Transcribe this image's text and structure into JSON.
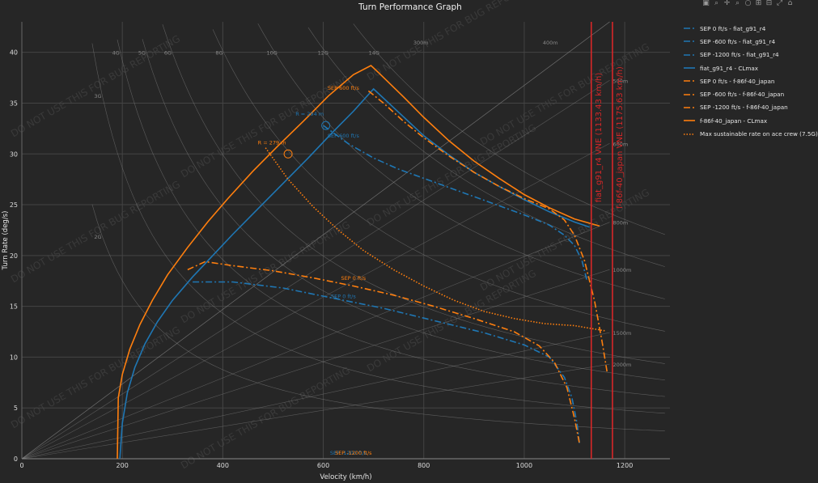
{
  "title": "Turn Performance Graph",
  "toolbar": {
    "icons": [
      "camera-icon",
      "zoom-in-icon",
      "pan-icon",
      "zoom-box-icon",
      "lasso-icon",
      "zoom-plus-icon",
      "zoom-minus-icon",
      "autoscale-icon",
      "reset-axes-icon"
    ],
    "glyphs": [
      "▣",
      "⌕",
      "✛",
      "⌕",
      "○",
      "⊞",
      "⊟",
      "⤢",
      "⌂"
    ]
  },
  "chart_data": {
    "type": "line",
    "title": "Turn Performance Graph",
    "xlabel": "Velocity (km/h)",
    "ylabel": "Turn Rate (deg/s)",
    "xlim": [
      0,
      1290
    ],
    "ylim": [
      0,
      43
    ],
    "xticks": [
      0,
      200,
      400,
      600,
      800,
      1000,
      1200
    ],
    "yticks": [
      0,
      5,
      10,
      15,
      20,
      25,
      30,
      35,
      40
    ],
    "grid": true,
    "legend_position": "right",
    "watermark": "DO NOT USE THIS FOR BUG REPORTING",
    "series": [
      {
        "name": "SEP 0 ft/s - fiat_g91_r4",
        "color": "#1f77b4",
        "dash": "dashdot",
        "x": [
          340,
          420,
          520,
          620,
          720,
          820,
          920,
          1000,
          1050,
          1080,
          1095,
          1105,
          1110
        ],
        "y": [
          17.4,
          17.4,
          16.8,
          15.8,
          14.8,
          13.6,
          12.4,
          11.2,
          10.0,
          8.0,
          6.0,
          3.5,
          1.5
        ]
      },
      {
        "name": "SEP -600 ft/s - fiat_g91_r4",
        "color": "#1f77b4",
        "dash": "dashdot",
        "x": [
          600,
          650,
          700,
          750,
          800,
          850,
          900,
          950,
          1000,
          1050,
          1080,
          1100,
          1115,
          1125
        ],
        "y": [
          32.8,
          31.0,
          29.6,
          28.5,
          27.6,
          26.7,
          25.8,
          24.9,
          24.0,
          23.0,
          22.0,
          21.0,
          19.5,
          17.5
        ]
      },
      {
        "name": "SEP -1200 ft/s - fiat_g91_r4",
        "color": "#1f77b4",
        "dash": "dashdot",
        "x": [],
        "y": []
      },
      {
        "name": "fiat_g91_r4 - CLmax",
        "color": "#1f77b4",
        "dash": "solid",
        "x": [
          195,
          200,
          210,
          225,
          245,
          270,
          300,
          340,
          380,
          420,
          470,
          520,
          570,
          620,
          660,
          700,
          750,
          800,
          850,
          900,
          950,
          1000,
          1050,
          1100,
          1130
        ],
        "y": [
          0,
          3.5,
          6.5,
          9.0,
          11.3,
          13.5,
          15.6,
          17.9,
          20.0,
          22.1,
          24.6,
          27.1,
          29.6,
          32.2,
          34.2,
          36.4,
          34.1,
          31.8,
          29.9,
          28.2,
          26.8,
          25.5,
          24.3,
          23.3,
          22.8
        ]
      },
      {
        "name": "SEP 0 ft/s - f-86f-40_japan",
        "color": "#ff7f0e",
        "dash": "dashdot",
        "x": [
          330,
          365,
          420,
          500,
          580,
          660,
          740,
          820,
          900,
          980,
          1030,
          1060,
          1085,
          1100,
          1110
        ],
        "y": [
          18.6,
          19.4,
          19.0,
          18.5,
          17.8,
          17.0,
          16.1,
          15.0,
          13.8,
          12.5,
          11.1,
          9.5,
          7.0,
          4.0,
          1.5
        ]
      },
      {
        "name": "SEP -600 ft/s - f-86f-40_japan",
        "color": "#ff7f0e",
        "dash": "dashdot",
        "x": [
          690,
          720,
          760,
          800,
          850,
          900,
          950,
          1000,
          1050,
          1080,
          1100,
          1120,
          1140,
          1155,
          1165
        ],
        "y": [
          36.2,
          35.0,
          33.2,
          31.6,
          29.8,
          28.2,
          26.8,
          25.6,
          24.6,
          23.5,
          22.0,
          19.5,
          15.5,
          11.5,
          8.5
        ]
      },
      {
        "name": "SEP -1200 ft/s - f-86f-40_japan",
        "color": "#ff7f0e",
        "dash": "dashdot",
        "x": [],
        "y": []
      },
      {
        "name": "f-86f-40_japan - CLmax",
        "color": "#ff7f0e",
        "dash": "solid",
        "x": [
          190,
          192,
          200,
          215,
          235,
          260,
          290,
          330,
          370,
          410,
          460,
          510,
          560,
          610,
          660,
          695,
          710,
          760,
          800,
          850,
          900,
          950,
          1000,
          1050,
          1100,
          1150
        ],
        "y": [
          0,
          6.0,
          8.3,
          10.8,
          13.2,
          15.6,
          18.1,
          20.8,
          23.3,
          25.6,
          28.3,
          30.8,
          33.2,
          35.7,
          37.8,
          38.7,
          38.0,
          35.6,
          33.6,
          31.3,
          29.3,
          27.6,
          26.0,
          24.7,
          23.6,
          22.9
        ]
      },
      {
        "name": "Max sustainable rate on ace crew (7.5G)",
        "color": "#ff7f0e",
        "dash": "dot",
        "x": [
          485,
          530,
          580,
          630,
          680,
          740,
          800,
          860,
          920,
          980,
          1040,
          1100,
          1160
        ],
        "y": [
          30.6,
          27.5,
          24.8,
          22.5,
          20.5,
          18.6,
          17.0,
          15.6,
          14.5,
          13.8,
          13.3,
          13.1,
          12.6
        ]
      }
    ],
    "markers": [
      {
        "x": 530,
        "y": 30.0,
        "color": "#ff7f0e",
        "label": "R = 279 m"
      },
      {
        "x": 605,
        "y": 32.8,
        "color": "#1f77b4",
        "label": "R = 294 m"
      }
    ],
    "vlines": [
      {
        "x": 1133.43,
        "color": "#d62728",
        "label": "fiat_g91_r4 VNE (1133.43 km/h)"
      },
      {
        "x": 1175.63,
        "color": "#d62728",
        "label": "f-86f-40_japan VNE (1175.63 km/h)"
      }
    ],
    "annotations": [
      {
        "text": "SEP 600 ft/s",
        "x": 640,
        "y": 36.3,
        "color": "#ff7f0e"
      },
      {
        "text": "SEP 600 ft/s",
        "x": 640,
        "y": 31.6,
        "color": "#1f77b4"
      },
      {
        "text": "SEP 0 ft/s",
        "x": 660,
        "y": 17.6,
        "color": "#ff7f0e"
      },
      {
        "text": "SEP 0 ft/s",
        "x": 640,
        "y": 15.8,
        "color": "#1f77b4"
      },
      {
        "text": "SEP -1200 ft/s",
        "x": 650,
        "y": 0.4,
        "color": "#1f77b4"
      },
      {
        "text": "SEP -1200 ft/s",
        "x": 660,
        "y": 0.4,
        "color": "#ff7f0e"
      }
    ],
    "g_lines": [
      "2G",
      "3G",
      "4G",
      "5G",
      "6G",
      "8G",
      "10G",
      "12G",
      "14G"
    ],
    "radius_lines": [
      "300m",
      "400m",
      "500m",
      "600m",
      "800m",
      "1000m",
      "1500m",
      "2000m"
    ]
  }
}
